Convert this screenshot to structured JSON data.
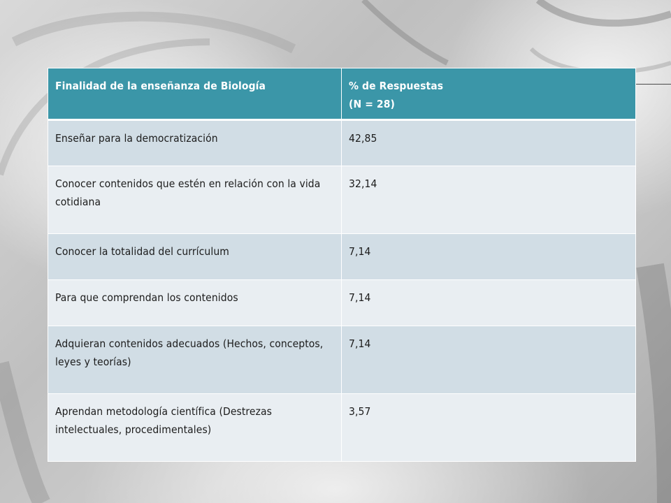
{
  "table": {
    "headers": [
      "Finalidad de la enseñanza de Biología",
      "% de Respuestas",
      "(N = 28)"
    ],
    "rows": [
      {
        "label": "Enseñar para la democratización",
        "value": "42,85"
      },
      {
        "label": "Conocer contenidos que estén en relación con la vida cotidiana",
        "value": "32,14"
      },
      {
        "label": "Conocer la totalidad del currículum",
        "value": "7,14"
      },
      {
        "label": "Para que comprendan los contenidos",
        "value": "7,14"
      },
      {
        "label": "Adquieran contenidos adecuados (Hechos, conceptos, leyes y teorías)",
        "value": "7,14"
      },
      {
        "label": "Aprendan metodología científica (Destrezas intelectuales, procedimentales)",
        "value": "3,57"
      }
    ]
  },
  "colors": {
    "header_bg": "#3b96a8",
    "row_dark": "#d1dde5",
    "row_light": "#e9eef2"
  }
}
